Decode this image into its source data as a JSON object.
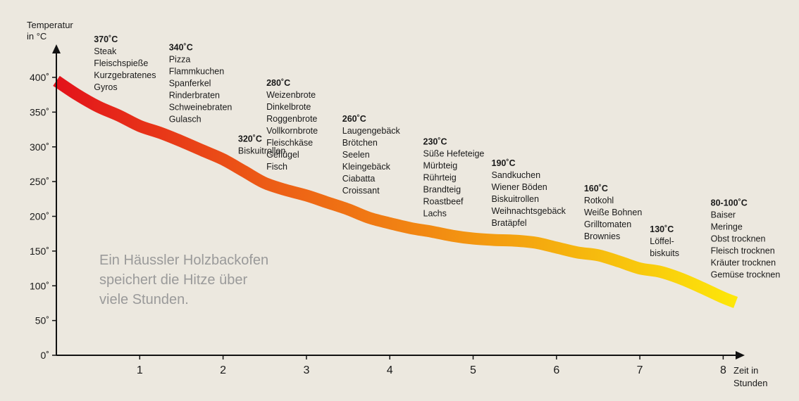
{
  "chart_data": {
    "type": "line",
    "ylabel": [
      "Temperatur",
      "in °C"
    ],
    "xlabel": [
      "Zeit in",
      "Stunden"
    ],
    "ylim": [
      0,
      400
    ],
    "xlim": [
      0,
      8.3
    ],
    "y_ticks": [
      {
        "v": 0,
        "label": "0˚"
      },
      {
        "v": 50,
        "label": "50˚"
      },
      {
        "v": 100,
        "label": "100˚"
      },
      {
        "v": 150,
        "label": "150˚"
      },
      {
        "v": 200,
        "label": "200˚"
      },
      {
        "v": 250,
        "label": "250˚"
      },
      {
        "v": 300,
        "label": "300˚"
      },
      {
        "v": 350,
        "label": "350˚"
      },
      {
        "v": 400,
        "label": "400˚"
      }
    ],
    "x_ticks": [
      {
        "v": 1,
        "label": "1"
      },
      {
        "v": 2,
        "label": "2"
      },
      {
        "v": 3,
        "label": "3"
      },
      {
        "v": 4,
        "label": "4"
      },
      {
        "v": 5,
        "label": "5"
      },
      {
        "v": 6,
        "label": "6"
      },
      {
        "v": 7,
        "label": "7"
      },
      {
        "v": 8,
        "label": "8"
      }
    ],
    "series": [
      {
        "x": [
          0,
          0.25,
          0.5,
          0.75,
          1.0,
          1.25,
          1.5,
          1.75,
          2.0,
          2.25,
          2.5,
          2.75,
          3.0,
          3.25,
          3.5,
          3.75,
          4.0,
          4.25,
          4.5,
          4.75,
          5.0,
          5.25,
          5.5,
          5.75,
          6.0,
          6.25,
          6.5,
          6.75,
          7.0,
          7.25,
          7.5,
          7.75,
          8.0,
          8.15
        ],
        "y": [
          395,
          375,
          358,
          345,
          330,
          320,
          308,
          295,
          282,
          265,
          248,
          238,
          230,
          220,
          210,
          198,
          190,
          183,
          178,
          172,
          168,
          166,
          165,
          162,
          155,
          148,
          144,
          135,
          125,
          120,
          110,
          97,
          83,
          76
        ]
      }
    ],
    "annotations": [
      {
        "x": 0.45,
        "temp": "370˚C",
        "items": [
          "Steak",
          "Fleischspieße",
          "Kurzgebratenes",
          "Gyros"
        ]
      },
      {
        "x": 1.35,
        "temp": "340˚C",
        "items": [
          "Pizza",
          "Flammkuchen",
          "Spanferkel",
          "Rinderbraten",
          "Schweinebraten",
          "Gulasch"
        ]
      },
      {
        "x": 2.18,
        "temp": "320˚C",
        "items": [
          "Biskuitrollen"
        ]
      },
      {
        "x": 2.52,
        "temp": "280˚C",
        "items": [
          "Weizenbrote",
          "Dinkelbrote",
          "Roggenbrote",
          "Vollkornbrote",
          "Fleischkäse",
          "Geflügel",
          "Fisch"
        ]
      },
      {
        "x": 3.43,
        "temp": "260˚C",
        "items": [
          "Laugengebäck",
          "Brötchen",
          "Seelen",
          "Kleingebäck",
          "Ciabatta",
          "Croissant"
        ]
      },
      {
        "x": 4.4,
        "temp": "230˚C",
        "items": [
          "Süße Hefeteige",
          "Mürbteig",
          "Rührteig",
          "Brandteig",
          "Roastbeef",
          "Lachs"
        ]
      },
      {
        "x": 5.22,
        "temp": "190˚C",
        "items": [
          "Sandkuchen",
          "Wiener Böden",
          "Biskuitrollen",
          "Weihnachtsgebäck",
          "Bratäpfel"
        ]
      },
      {
        "x": 6.33,
        "temp": "160˚C",
        "items": [
          "Rotkohl",
          "Weiße Bohnen",
          "Grilltomaten",
          "Brownies"
        ]
      },
      {
        "x": 7.12,
        "temp": "130˚C",
        "items": [
          "Löffel-",
          "biskuits"
        ]
      },
      {
        "x": 7.85,
        "temp": "80-100˚C",
        "items": [
          "Baiser",
          "Meringe",
          "Obst trocknen",
          "Fleisch trocknen",
          "Kräuter trocknen",
          "Gemüse trocknen"
        ]
      }
    ],
    "note": [
      "Ein Häussler Holzbackofen",
      "speichert die Hitze über",
      "viele Stunden."
    ],
    "colors": {
      "start": "#e3121b",
      "mid1": "#ec5a16",
      "mid2": "#f28a12",
      "mid3": "#f6b80e",
      "end": "#fde70a",
      "axis": "#111111",
      "note": "#9a9a9a"
    }
  }
}
